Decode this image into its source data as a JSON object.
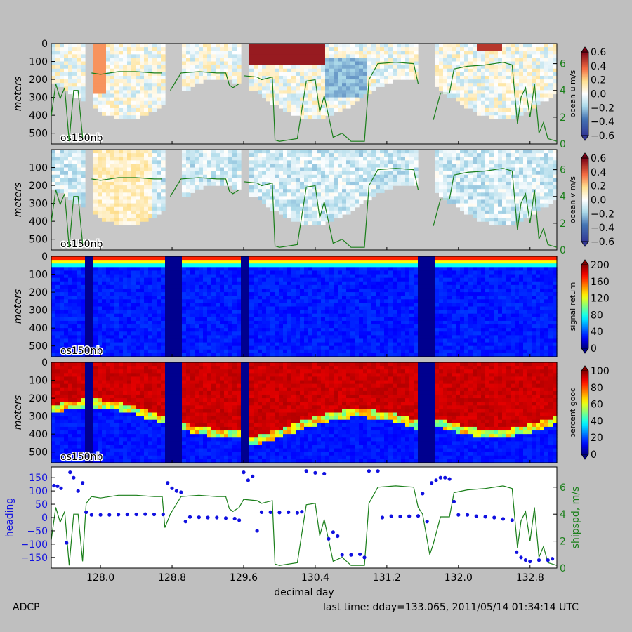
{
  "footer": {
    "left": "ADCP",
    "right": "last time: dday=133.065,  2011/05/14 01:34:14 UTC"
  },
  "colors": {
    "ship_speed": "#1a7f1a",
    "heading": "#1010e0",
    "frame_bg": "#bfbfbf",
    "nodata": "#c8c8c8"
  },
  "chart_data": [
    {
      "type": "heatmap",
      "variable": "ocean u",
      "ylabel": "meters",
      "ylim": [
        560,
        0
      ],
      "yticks": [
        0,
        100,
        200,
        300,
        400,
        500
      ],
      "xlim": [
        127.45,
        133.1
      ],
      "instrument_label": "os150nb",
      "colorbar": {
        "label": "ocean u m/s",
        "range": [
          -0.6,
          0.6
        ],
        "ticks": [
          "0.6",
          "0.4",
          "0.2",
          "0.0",
          "−0.2",
          "−0.4",
          "−0.6"
        ],
        "colormap": "bwr"
      },
      "right_axis": {
        "ticks": [
          "6",
          "4",
          "2",
          "0"
        ],
        "range": [
          0,
          7.5
        ]
      }
    },
    {
      "type": "heatmap",
      "variable": "ocean v",
      "ylabel": "meters",
      "ylim": [
        560,
        0
      ],
      "yticks": [
        100,
        200,
        300,
        400,
        500
      ],
      "xlim": [
        127.45,
        133.1
      ],
      "instrument_label": "os150nb",
      "colorbar": {
        "label": "ocean v m/s",
        "range": [
          -0.6,
          0.6
        ],
        "ticks": [
          "0.6",
          "0.4",
          "0.2",
          "0.0",
          "−0.2",
          "−0.4",
          "−0.6"
        ],
        "colormap": "bwr"
      },
      "right_axis": {
        "ticks": [
          "6",
          "4",
          "2",
          "0"
        ],
        "range": [
          0,
          7.5
        ]
      }
    },
    {
      "type": "heatmap",
      "variable": "signal return",
      "ylabel": "meters",
      "ylim": [
        560,
        0
      ],
      "yticks": [
        0,
        100,
        200,
        300,
        400,
        500
      ],
      "xlim": [
        127.45,
        133.1
      ],
      "instrument_label": "os150nb",
      "colorbar": {
        "label": "signal return",
        "range": [
          0,
          200
        ],
        "ticks": [
          "200",
          "160",
          "120",
          "80",
          "40",
          "0"
        ],
        "colormap": "jet"
      }
    },
    {
      "type": "heatmap",
      "variable": "percent good",
      "ylabel": "meters",
      "ylim": [
        560,
        0
      ],
      "yticks": [
        0,
        100,
        200,
        300,
        400,
        500
      ],
      "xlim": [
        127.45,
        133.1
      ],
      "instrument_label": "os150nb",
      "colorbar": {
        "label": "percent good",
        "range": [
          0,
          100
        ],
        "ticks": [
          "100",
          "80",
          "60",
          "40",
          "20",
          "0"
        ],
        "colormap": "jet"
      }
    },
    {
      "type": "scatter",
      "xlabel": "decimal day",
      "xlim": [
        127.45,
        133.1
      ],
      "xticks": [
        128.0,
        128.8,
        129.6,
        130.4,
        131.2,
        132.0,
        132.8
      ],
      "xtick_labels": [
        "128.0",
        "128.8",
        "129.6",
        "130.4",
        "131.2",
        "132.0",
        "132.8"
      ],
      "left_axis": {
        "label": "heading",
        "range": [
          -190,
          190
        ],
        "ticks": [
          "150",
          "100",
          "50",
          "0",
          "−50",
          "−100",
          "−150"
        ]
      },
      "right_axis": {
        "label": "shipspd, m/s",
        "range": [
          0,
          7.5
        ],
        "ticks": [
          "6",
          "4",
          "2",
          "0"
        ]
      },
      "series": [
        {
          "variable": "heading",
          "points": [
            [
              127.48,
              120
            ],
            [
              127.52,
              118
            ],
            [
              127.56,
              110
            ],
            [
              127.62,
              -95
            ],
            [
              127.66,
              170
            ],
            [
              127.7,
              150
            ],
            [
              127.75,
              100
            ],
            [
              127.8,
              130
            ],
            [
              127.84,
              20
            ],
            [
              127.9,
              10
            ],
            [
              128.0,
              10
            ],
            [
              128.1,
              10
            ],
            [
              128.2,
              11
            ],
            [
              128.3,
              12
            ],
            [
              128.4,
              12
            ],
            [
              128.5,
              13
            ],
            [
              128.6,
              12
            ],
            [
              128.7,
              12
            ],
            [
              128.75,
              130
            ],
            [
              128.8,
              110
            ],
            [
              128.85,
              100
            ],
            [
              128.9,
              95
            ],
            [
              128.95,
              -15
            ],
            [
              129.0,
              2
            ],
            [
              129.1,
              1
            ],
            [
              129.2,
              0
            ],
            [
              129.3,
              0
            ],
            [
              129.4,
              -2
            ],
            [
              129.5,
              -4
            ],
            [
              129.55,
              -10
            ],
            [
              129.6,
              170
            ],
            [
              129.65,
              140
            ],
            [
              129.7,
              155
            ],
            [
              129.75,
              -50
            ],
            [
              129.8,
              20
            ],
            [
              129.9,
              20
            ],
            [
              130.0,
              19
            ],
            [
              130.1,
              20
            ],
            [
              130.2,
              18
            ],
            [
              130.25,
              22
            ],
            [
              130.3,
              175
            ],
            [
              130.4,
              168
            ],
            [
              130.5,
              165
            ],
            [
              130.55,
              -80
            ],
            [
              130.6,
              -55
            ],
            [
              130.65,
              -70
            ],
            [
              130.7,
              -140
            ],
            [
              130.8,
              -140
            ],
            [
              130.9,
              -138
            ],
            [
              130.95,
              -150
            ],
            [
              131.0,
              175
            ],
            [
              131.1,
              175
            ],
            [
              131.15,
              0
            ],
            [
              131.25,
              5
            ],
            [
              131.35,
              4
            ],
            [
              131.45,
              5
            ],
            [
              131.55,
              6
            ],
            [
              131.6,
              90
            ],
            [
              131.65,
              -15
            ],
            [
              131.7,
              130
            ],
            [
              131.75,
              140
            ],
            [
              131.8,
              150
            ],
            [
              131.85,
              150
            ],
            [
              131.9,
              145
            ],
            [
              131.95,
              60
            ],
            [
              132.0,
              10
            ],
            [
              132.1,
              10
            ],
            [
              132.2,
              5
            ],
            [
              132.3,
              3
            ],
            [
              132.4,
              0
            ],
            [
              132.5,
              -5
            ],
            [
              132.6,
              -10
            ],
            [
              132.65,
              -130
            ],
            [
              132.7,
              -150
            ],
            [
              132.75,
              -160
            ],
            [
              132.8,
              -165
            ],
            [
              132.9,
              -160
            ],
            [
              133.0,
              -160
            ],
            [
              133.05,
              -155
            ]
          ]
        },
        {
          "variable": "shipspd",
          "points": [
            [
              127.45,
              2.1
            ],
            [
              127.5,
              4.5
            ],
            [
              127.55,
              3.4
            ],
            [
              127.6,
              4.2
            ],
            [
              127.65,
              0.2
            ],
            [
              127.7,
              4.0
            ],
            [
              127.75,
              4.0
            ],
            [
              127.8,
              0.5
            ],
            [
              127.84,
              4.8
            ],
            [
              127.9,
              5.3
            ],
            [
              128.0,
              5.2
            ],
            [
              128.2,
              5.4
            ],
            [
              128.4,
              5.4
            ],
            [
              128.6,
              5.3
            ],
            [
              128.69,
              5.3
            ],
            [
              128.72,
              3.0
            ],
            [
              128.78,
              4.0
            ],
            [
              128.9,
              5.3
            ],
            [
              129.1,
              5.4
            ],
            [
              129.3,
              5.3
            ],
            [
              129.4,
              5.3
            ],
            [
              129.44,
              4.4
            ],
            [
              129.48,
              4.2
            ],
            [
              129.55,
              4.5
            ],
            [
              129.6,
              5.1
            ],
            [
              129.75,
              5.0
            ],
            [
              129.8,
              4.8
            ],
            [
              129.92,
              5.0
            ],
            [
              129.95,
              0.3
            ],
            [
              130.0,
              0.2
            ],
            [
              130.2,
              0.4
            ],
            [
              130.3,
              4.7
            ],
            [
              130.4,
              4.8
            ],
            [
              130.45,
              2.4
            ],
            [
              130.5,
              3.6
            ],
            [
              130.6,
              0.5
            ],
            [
              130.7,
              0.8
            ],
            [
              130.8,
              0.2
            ],
            [
              130.95,
              0.2
            ],
            [
              131.0,
              4.8
            ],
            [
              131.1,
              6.0
            ],
            [
              131.3,
              6.1
            ],
            [
              131.5,
              6.0
            ],
            [
              131.55,
              4.5
            ],
            [
              131.6,
              4.0
            ],
            [
              131.68,
              1.0
            ],
            [
              131.72,
              1.8
            ],
            [
              131.8,
              3.8
            ],
            [
              131.9,
              3.8
            ],
            [
              131.95,
              5.6
            ],
            [
              132.1,
              5.8
            ],
            [
              132.3,
              5.9
            ],
            [
              132.5,
              6.1
            ],
            [
              132.6,
              5.9
            ],
            [
              132.66,
              1.5
            ],
            [
              132.7,
              3.5
            ],
            [
              132.75,
              4.2
            ],
            [
              132.8,
              2.0
            ],
            [
              132.85,
              4.5
            ],
            [
              132.9,
              0.8
            ],
            [
              132.95,
              1.6
            ],
            [
              133.0,
              0.4
            ],
            [
              133.1,
              0.2
            ]
          ]
        }
      ]
    }
  ]
}
